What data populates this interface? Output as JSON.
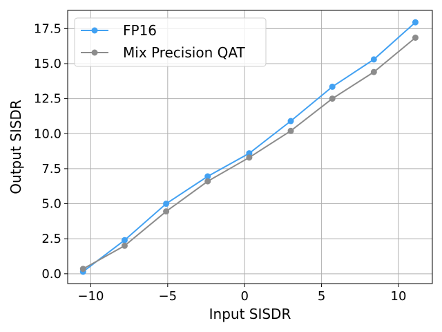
{
  "chart_data": {
    "type": "line",
    "title": "",
    "xlabel": "Input SISDR",
    "ylabel": "Output SISDR",
    "xlim": [
      -11.5,
      12.2
    ],
    "ylim": [
      -0.7,
      18.8
    ],
    "grid": true,
    "legend_position": "top-left",
    "xticks": [
      -10,
      -5,
      0,
      5,
      10
    ],
    "xtick_labels": [
      "−10",
      "−5",
      "0",
      "5",
      "10"
    ],
    "yticks": [
      0.0,
      2.5,
      5.0,
      7.5,
      10.0,
      12.5,
      15.0,
      17.5
    ],
    "ytick_labels": [
      "0.0",
      "2.5",
      "5.0",
      "7.5",
      "10.0",
      "12.5",
      "15.0",
      "17.5"
    ],
    "x": [
      -10.5,
      -7.8,
      -5.1,
      -2.4,
      0.3,
      3.0,
      5.7,
      8.4,
      11.1
    ],
    "series": [
      {
        "name": "FP16",
        "color": "#42a1f2",
        "values": [
          0.15,
          2.4,
          5.0,
          6.95,
          8.6,
          10.9,
          13.35,
          15.3,
          17.95
        ]
      },
      {
        "name": "Mix Precision QAT",
        "color": "#8c8c8c",
        "values": [
          0.35,
          2.0,
          4.45,
          6.6,
          8.3,
          10.2,
          12.5,
          14.4,
          16.85
        ]
      }
    ]
  }
}
